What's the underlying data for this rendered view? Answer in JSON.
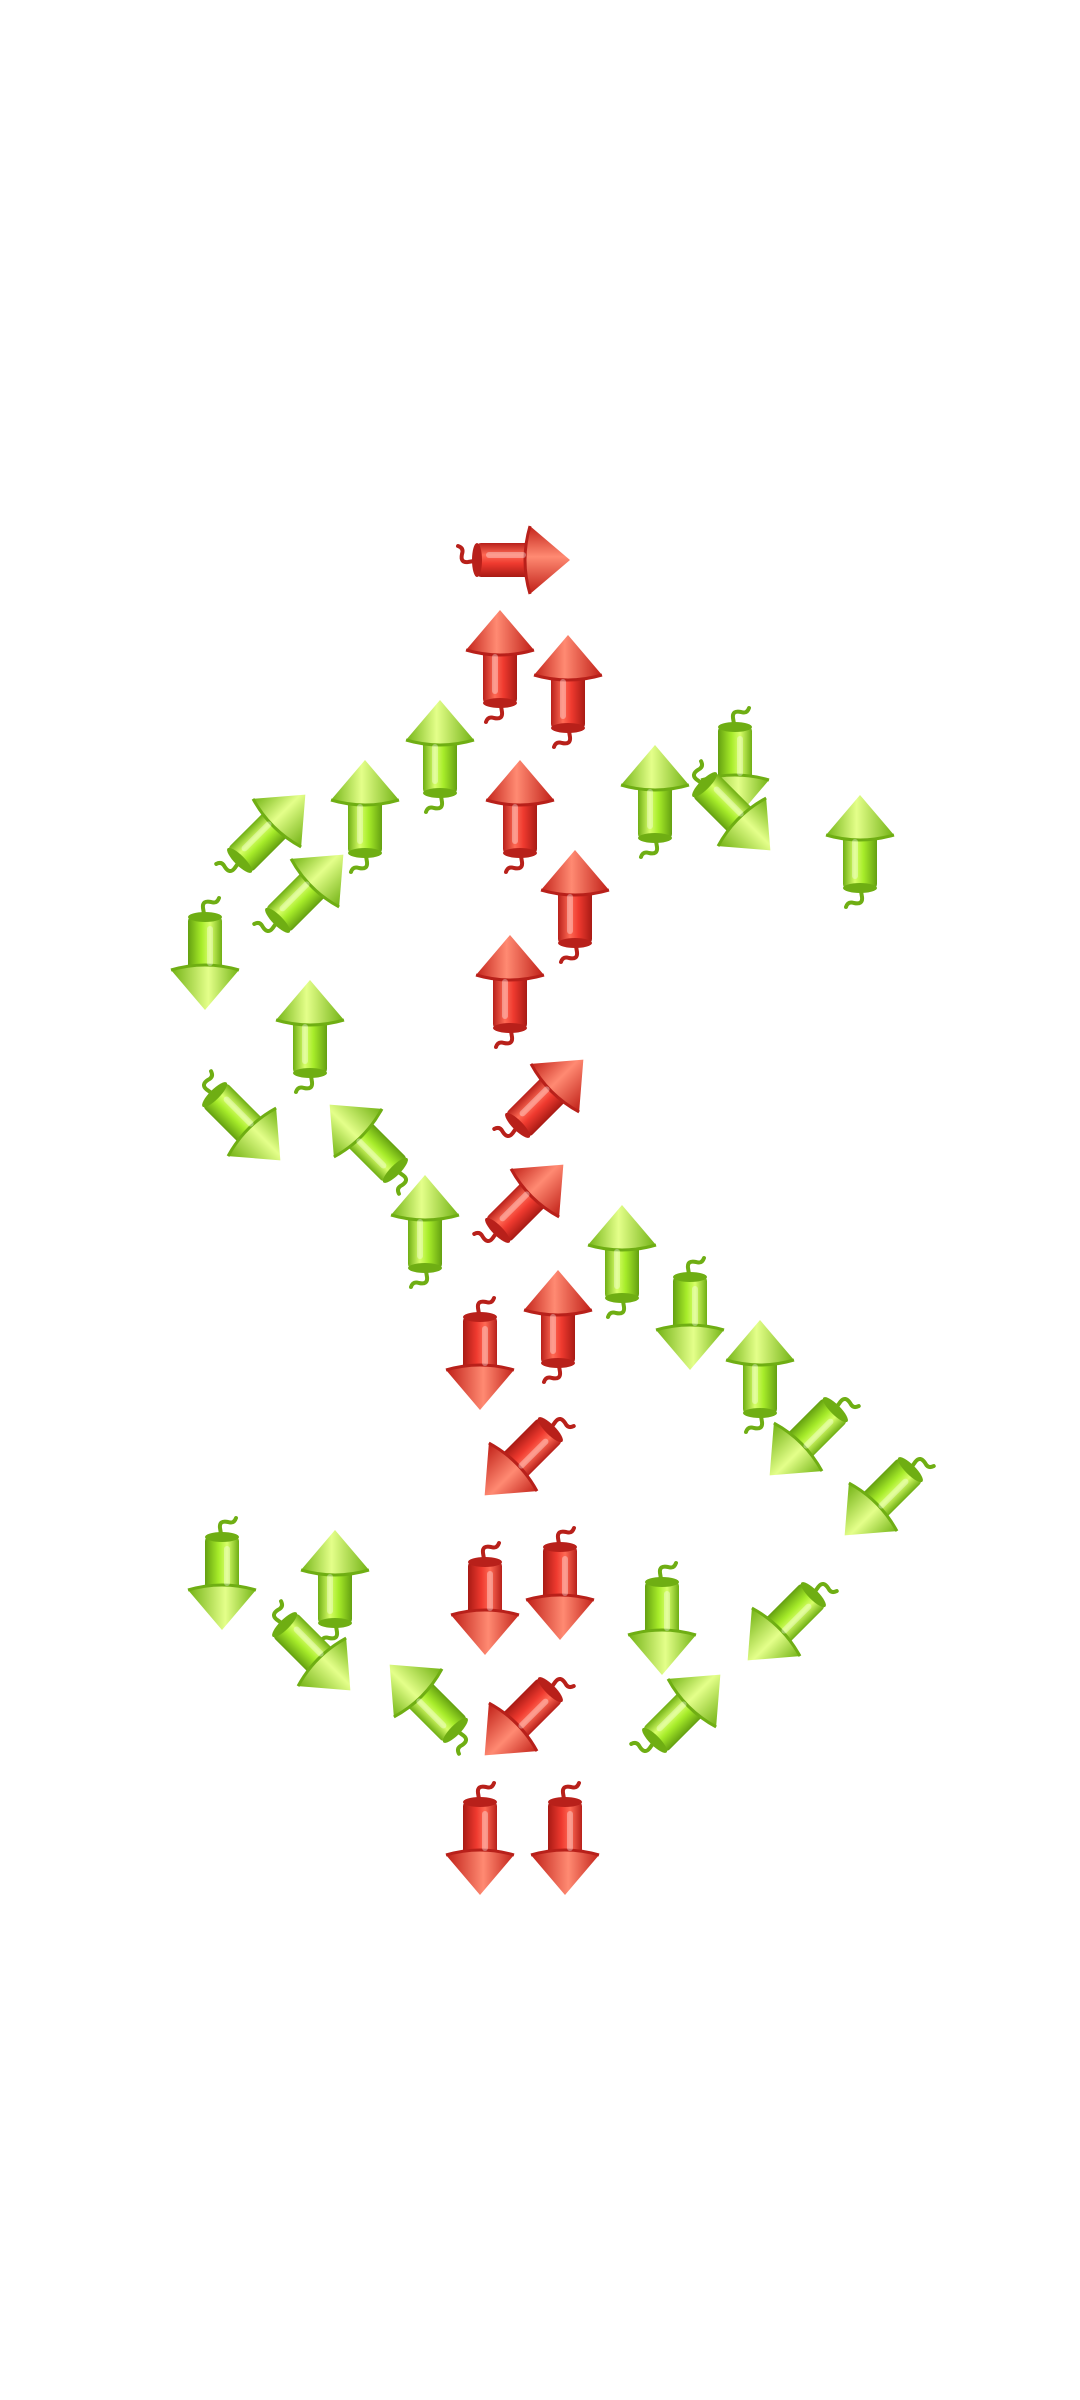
{
  "game": {
    "shape": "dollar-sign",
    "palette": {
      "red": {
        "body": "#ef3a2f",
        "light": "#ff7a66",
        "dark": "#b8201a"
      },
      "green": {
        "body": "#a7ec2a",
        "light": "#d8ff6a",
        "dark": "#6fae13"
      },
      "fuse": "#c42a1e"
    },
    "pieces": [
      {
        "color": "red",
        "direction": "right"
      },
      {
        "color": "red",
        "direction": "up"
      },
      {
        "color": "red",
        "direction": "up"
      },
      {
        "color": "red",
        "direction": "up"
      },
      {
        "color": "red",
        "direction": "up"
      },
      {
        "color": "red",
        "direction": "up"
      },
      {
        "color": "red",
        "direction": "up-right"
      },
      {
        "color": "red",
        "direction": "up-right"
      },
      {
        "color": "red",
        "direction": "down"
      },
      {
        "color": "red",
        "direction": "up"
      },
      {
        "color": "red",
        "direction": "down-left"
      },
      {
        "color": "red",
        "direction": "down"
      },
      {
        "color": "red",
        "direction": "down"
      },
      {
        "color": "red",
        "direction": "down-left"
      },
      {
        "color": "red",
        "direction": "down"
      },
      {
        "color": "red",
        "direction": "down"
      },
      {
        "color": "green",
        "direction": "up"
      },
      {
        "color": "green",
        "direction": "up"
      },
      {
        "color": "green",
        "direction": "up-right"
      },
      {
        "color": "green",
        "direction": "up-right"
      },
      {
        "color": "green",
        "direction": "up"
      },
      {
        "color": "green",
        "direction": "down"
      },
      {
        "color": "green",
        "direction": "down-right"
      },
      {
        "color": "green",
        "direction": "up"
      },
      {
        "color": "green",
        "direction": "down"
      },
      {
        "color": "green",
        "direction": "up"
      },
      {
        "color": "green",
        "direction": "down-right"
      },
      {
        "color": "green",
        "direction": "up-left"
      },
      {
        "color": "green",
        "direction": "up"
      },
      {
        "color": "green",
        "direction": "up"
      },
      {
        "color": "green",
        "direction": "down"
      },
      {
        "color": "green",
        "direction": "up"
      },
      {
        "color": "green",
        "direction": "down-left"
      },
      {
        "color": "green",
        "direction": "down-left"
      },
      {
        "color": "green",
        "direction": "down"
      },
      {
        "color": "green",
        "direction": "up"
      },
      {
        "color": "green",
        "direction": "down-right"
      },
      {
        "color": "green",
        "direction": "up-left"
      },
      {
        "color": "green",
        "direction": "down"
      },
      {
        "color": "green",
        "direction": "down-left"
      },
      {
        "color": "green",
        "direction": "up-right"
      }
    ]
  }
}
